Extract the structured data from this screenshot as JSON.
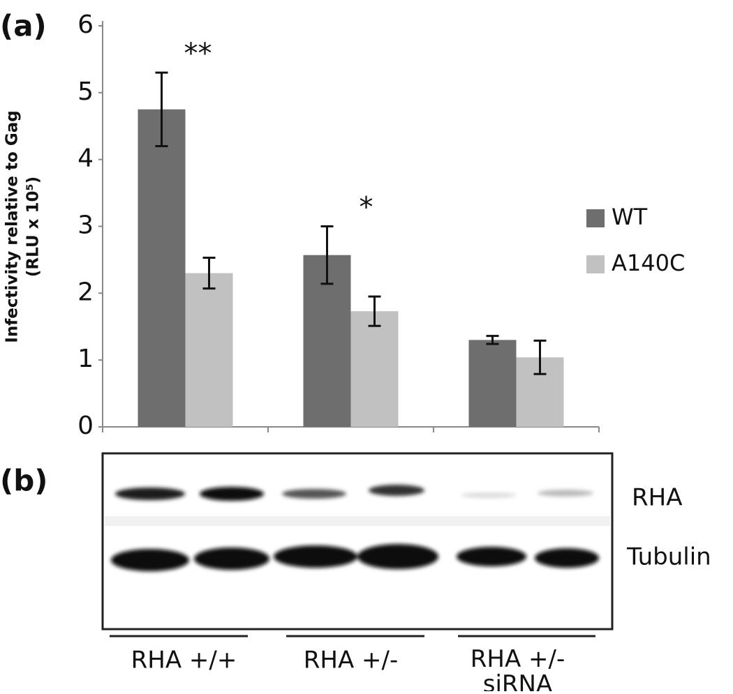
{
  "panel_a_label": "(a)",
  "chart_data": {
    "type": "bar",
    "y_label": "Infectivity relative to Gag",
    "y_label_2": "(RLU x 10⁵)",
    "categories": [
      "RHA +/+",
      "RHA +/-",
      "RHA +/- siRNA"
    ],
    "series": [
      {
        "name": "WT",
        "color": "#6e6e6e",
        "values": [
          4.75,
          2.57,
          1.3
        ],
        "errors": [
          0.55,
          0.43,
          0.06
        ]
      },
      {
        "name": "A140C",
        "color": "#c1c1c1",
        "values": [
          2.3,
          1.73,
          1.04
        ],
        "errors": [
          0.23,
          0.22,
          0.25
        ]
      }
    ],
    "annotations": [
      "**",
      "*",
      null
    ],
    "ylim": [
      0,
      6
    ],
    "yticks": [
      0,
      1,
      2,
      3,
      4,
      5,
      6
    ],
    "legend": "right"
  },
  "blot": {
    "panel_label": "(b)",
    "bands": [
      "RHA",
      "Tubulin"
    ]
  }
}
